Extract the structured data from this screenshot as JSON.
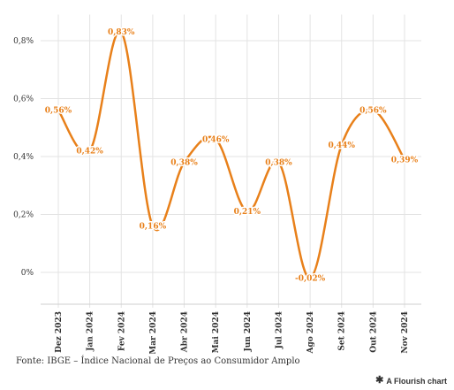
{
  "chart_data": {
    "type": "line",
    "categories": [
      "Dez 2023",
      "Jan 2024",
      "Fev 2024",
      "Mar 2024",
      "Abr 2024",
      "Mai 2024",
      "Jun 2024",
      "Jul 2024",
      "Ago 2024",
      "Set 2024",
      "Out 2024",
      "Nov 2024"
    ],
    "values": [
      0.56,
      0.42,
      0.83,
      0.16,
      0.38,
      0.46,
      0.21,
      0.38,
      -0.02,
      0.44,
      0.56,
      0.39
    ],
    "data_labels": [
      "0,56%",
      "0,42%",
      "0,83%",
      "0,16%",
      "0,38%",
      "0,46%",
      "0,21%",
      "0,38%",
      "-0,02%",
      "0,44%",
      "0,56%",
      "0,39%"
    ],
    "yticks": [
      0,
      0.2,
      0.4,
      0.6,
      0.8
    ],
    "ytick_labels": [
      "0%",
      "0,2%",
      "0,4%",
      "0,6%",
      "0,8%"
    ],
    "ylim": [
      -0.11,
      0.89
    ],
    "grid": true,
    "color": "#e8801a"
  },
  "footer": {
    "source": "Fonte: IBGE – Índice Nacional de Preços ao Consumidor Amplo",
    "credit": "A Flourish chart"
  }
}
